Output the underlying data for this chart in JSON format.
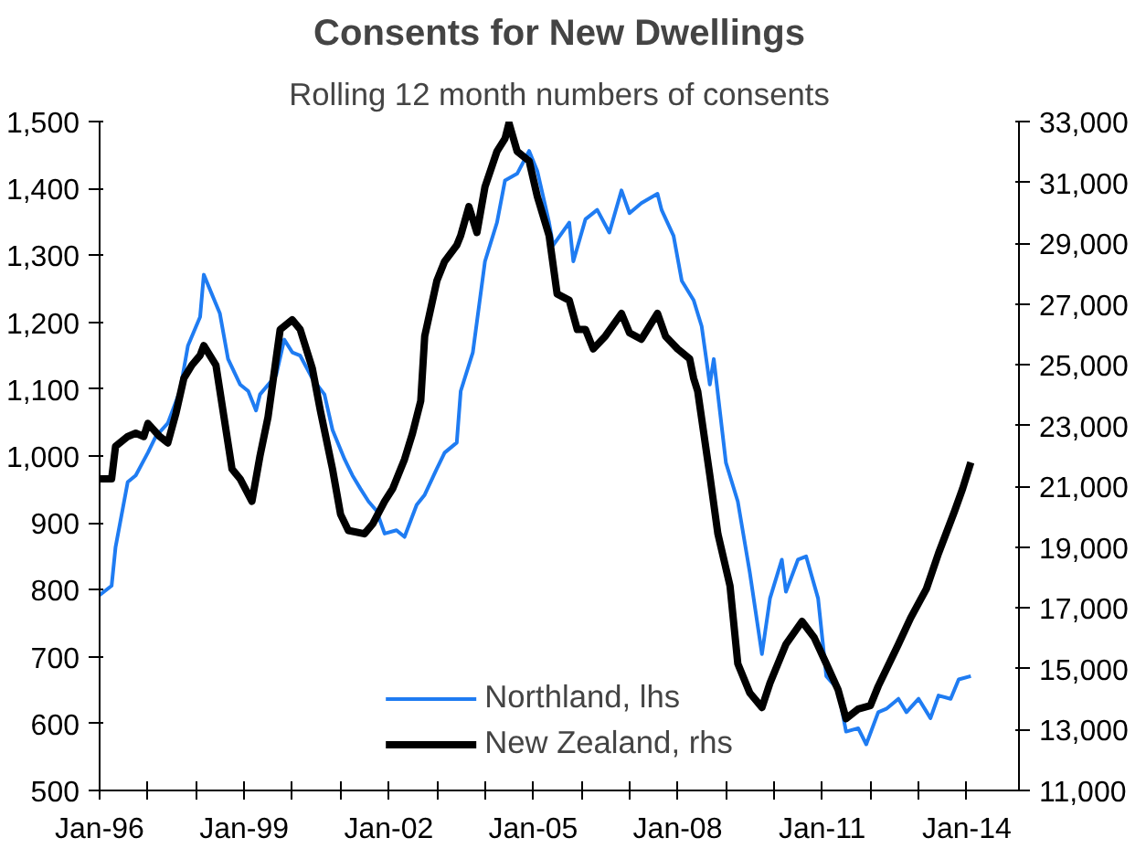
{
  "chart_data": {
    "type": "line",
    "title": "Consents for New Dwellings",
    "subtitle": "Rolling 12 month numbers of consents",
    "xlim": [
      "1996-01",
      "2015-02"
    ],
    "xticks": [
      {
        "value": "1996-01",
        "label": "Jan-96"
      },
      {
        "value": "1997-01",
        "label": null
      },
      {
        "value": "1998-01",
        "label": null
      },
      {
        "value": "1999-01",
        "label": "Jan-99"
      },
      {
        "value": "2000-01",
        "label": null
      },
      {
        "value": "2001-01",
        "label": null
      },
      {
        "value": "2002-01",
        "label": "Jan-02"
      },
      {
        "value": "2003-01",
        "label": null
      },
      {
        "value": "2004-01",
        "label": null
      },
      {
        "value": "2005-01",
        "label": "Jan-05"
      },
      {
        "value": "2006-01",
        "label": null
      },
      {
        "value": "2007-01",
        "label": null
      },
      {
        "value": "2008-01",
        "label": "Jan-08"
      },
      {
        "value": "2009-01",
        "label": null
      },
      {
        "value": "2010-01",
        "label": null
      },
      {
        "value": "2011-01",
        "label": "Jan-11"
      },
      {
        "value": "2012-01",
        "label": null
      },
      {
        "value": "2013-01",
        "label": null
      },
      {
        "value": "2014-01",
        "label": "Jan-14"
      }
    ],
    "ylim": [
      500,
      1500
    ],
    "yticks": [
      {
        "value": 500,
        "label": "500"
      },
      {
        "value": 600,
        "label": "600"
      },
      {
        "value": 700,
        "label": "700"
      },
      {
        "value": 800,
        "label": "800"
      },
      {
        "value": 900,
        "label": "900"
      },
      {
        "value": 1000,
        "label": "1,000"
      },
      {
        "value": 1100,
        "label": "1,100"
      },
      {
        "value": 1200,
        "label": "1,200"
      },
      {
        "value": 1300,
        "label": "1,300"
      },
      {
        "value": 1400,
        "label": "1,400"
      },
      {
        "value": 1500,
        "label": "1,500"
      }
    ],
    "y2lim": [
      11000,
      33000
    ],
    "y2ticks": [
      {
        "value": 11000,
        "label": "11,000"
      },
      {
        "value": 13000,
        "label": "13,000"
      },
      {
        "value": 15000,
        "label": "15,000"
      },
      {
        "value": 17000,
        "label": "17,000"
      },
      {
        "value": 19000,
        "label": "19,000"
      },
      {
        "value": 21000,
        "label": "21,000"
      },
      {
        "value": 23000,
        "label": "23,000"
      },
      {
        "value": 25000,
        "label": "25,000"
      },
      {
        "value": 27000,
        "label": "27,000"
      },
      {
        "value": 29000,
        "label": "29,000"
      },
      {
        "value": 31000,
        "label": "31,000"
      },
      {
        "value": 33000,
        "label": "33,000"
      }
    ],
    "grid": false,
    "legend": "bottom",
    "series": [
      {
        "name": "Northland, lhs",
        "color": "#1f7cf2",
        "x": [
          "1996-01",
          "1996-04",
          "1996-05",
          "1996-08",
          "1996-10",
          "1997-01",
          "1997-03",
          "1997-06",
          "1997-09",
          "1997-11",
          "1998-02",
          "1998-03",
          "1998-07",
          "1998-09",
          "1998-12",
          "1999-02",
          "1999-04",
          "1999-05",
          "1999-09",
          "1999-11",
          "2000-01",
          "2000-03",
          "2000-06",
          "2000-09",
          "2000-11",
          "2001-02",
          "2001-04",
          "2001-06",
          "2001-08",
          "2001-10",
          "2001-12",
          "2002-03",
          "2002-05",
          "2002-08",
          "2002-10",
          "2003-01",
          "2003-03",
          "2003-06",
          "2003-07",
          "2003-10",
          "2004-01",
          "2004-04",
          "2004-06",
          "2004-09",
          "2004-12",
          "2005-02",
          "2005-05",
          "2005-06",
          "2005-10",
          "2005-11",
          "2006-02",
          "2006-05",
          "2006-08",
          "2006-11",
          "2007-01",
          "2007-04",
          "2007-08",
          "2007-09",
          "2007-12",
          "2008-02",
          "2008-05",
          "2008-07",
          "2008-09",
          "2008-10",
          "2009-01",
          "2009-04",
          "2009-07",
          "2009-10",
          "2009-12",
          "2010-03",
          "2010-04",
          "2010-07",
          "2010-09",
          "2010-12",
          "2011-02",
          "2011-05",
          "2011-07",
          "2011-10",
          "2011-12",
          "2012-03",
          "2012-05",
          "2012-08",
          "2012-10",
          "2013-01",
          "2013-04",
          "2013-06",
          "2013-09",
          "2013-11",
          "2014-02"
        ],
        "values": [
          792,
          806,
          864,
          961,
          971,
          1005,
          1029,
          1049,
          1097,
          1165,
          1208,
          1271,
          1213,
          1145,
          1107,
          1097,
          1068,
          1092,
          1121,
          1174,
          1155,
          1150,
          1116,
          1092,
          1039,
          995,
          971,
          951,
          932,
          918,
          884,
          889,
          879,
          927,
          942,
          981,
          1005,
          1020,
          1097,
          1155,
          1291,
          1349,
          1412,
          1422,
          1456,
          1426,
          1349,
          1315,
          1349,
          1291,
          1354,
          1368,
          1334,
          1397,
          1363,
          1378,
          1392,
          1368,
          1329,
          1262,
          1233,
          1194,
          1107,
          1145,
          990,
          932,
          826,
          704,
          787,
          845,
          797,
          845,
          850,
          787,
          671,
          651,
          588,
          593,
          569,
          617,
          622,
          637,
          617,
          637,
          608,
          642,
          637,
          666,
          671
        ]
      },
      {
        "name": "New Zealand, rhs",
        "color": "#000000",
        "axis": "y2",
        "x": [
          "1996-01",
          "1996-04",
          "1996-05",
          "1996-08",
          "1996-10",
          "1996-12",
          "1997-01",
          "1997-04",
          "1997-06",
          "1997-08",
          "1997-10",
          "1997-12",
          "1998-02",
          "1998-03",
          "1998-06",
          "1998-08",
          "1998-10",
          "1998-12",
          "1999-03",
          "1999-05",
          "1999-07",
          "1999-10",
          "2000-01",
          "2000-03",
          "2000-06",
          "2000-08",
          "2000-11",
          "2001-01",
          "2001-03",
          "2001-07",
          "2001-09",
          "2001-12",
          "2002-02",
          "2002-05",
          "2002-07",
          "2002-09",
          "2002-10",
          "2003-01",
          "2003-03",
          "2003-06",
          "2003-07",
          "2003-09",
          "2003-11",
          "2004-01",
          "2004-04",
          "2004-06",
          "2004-07",
          "2004-09",
          "2004-12",
          "2005-02",
          "2005-05",
          "2005-07",
          "2005-10",
          "2005-12",
          "2006-02",
          "2006-04",
          "2006-07",
          "2006-11",
          "2007-01",
          "2007-04",
          "2007-08",
          "2007-10",
          "2008-01",
          "2008-04",
          "2008-05",
          "2008-06",
          "2008-09",
          "2008-11",
          "2009-02",
          "2009-04",
          "2009-07",
          "2009-10",
          "2009-12",
          "2010-04",
          "2010-08",
          "2010-11",
          "2011-02",
          "2011-05",
          "2011-07",
          "2011-10",
          "2012-01",
          "2012-03",
          "2012-08",
          "2012-11",
          "2013-03",
          "2013-06",
          "2013-10",
          "2013-12",
          "2014-02"
        ],
        "values": [
          21250,
          21250,
          22320,
          22640,
          22750,
          22640,
          23070,
          22640,
          22430,
          23390,
          24560,
          24990,
          25310,
          25630,
          24990,
          23280,
          21570,
          21250,
          20510,
          22000,
          23280,
          26160,
          26480,
          26160,
          24880,
          23490,
          21570,
          20080,
          19550,
          19440,
          19760,
          20510,
          20930,
          21890,
          22750,
          23810,
          25940,
          27760,
          28400,
          28930,
          29250,
          30200,
          29350,
          30850,
          32020,
          32440,
          32950,
          32020,
          31700,
          30530,
          29250,
          27330,
          27120,
          26160,
          26160,
          25520,
          25940,
          26690,
          26050,
          25840,
          26690,
          25940,
          25520,
          25200,
          24560,
          24130,
          21360,
          19440,
          17730,
          15170,
          14210,
          13730,
          14530,
          15810,
          16560,
          16030,
          15170,
          14320,
          13360,
          13680,
          13790,
          14430,
          15810,
          16670,
          17630,
          18800,
          20190,
          20930,
          21790
        ]
      }
    ]
  }
}
